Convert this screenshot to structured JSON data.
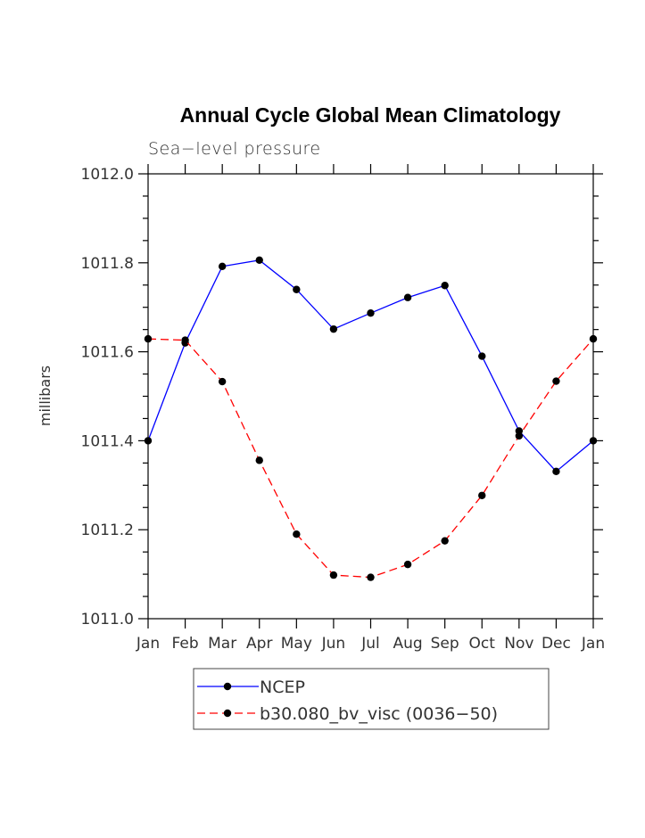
{
  "chart_data": {
    "type": "line",
    "title": "Annual Cycle Global Mean Climatology",
    "subtitle": "Sea−level pressure",
    "xlabel": "",
    "ylabel": "millibars",
    "categories": [
      "Jan",
      "Feb",
      "Mar",
      "Apr",
      "May",
      "Jun",
      "Jul",
      "Aug",
      "Sep",
      "Oct",
      "Nov",
      "Dec",
      "Jan"
    ],
    "ylim": [
      1011.0,
      1012.0
    ],
    "yticks": [
      1011.0,
      1011.2,
      1011.4,
      1011.6,
      1011.8,
      1012.0
    ],
    "ytick_labels": [
      "1011.0",
      "1011.2",
      "1011.4",
      "1011.6",
      "1011.8",
      "1012.0"
    ],
    "legend_position": "bottom",
    "series": [
      {
        "name": "NCEP",
        "color": "#0000ff",
        "dash": "solid",
        "values": [
          1011.4,
          1011.62,
          1011.792,
          1011.806,
          1011.74,
          1011.651,
          1011.687,
          1011.722,
          1011.749,
          1011.59,
          1011.422,
          1011.331,
          1011.4
        ]
      },
      {
        "name": "b30.080_bv_visc (0036−50)",
        "color": "#ff0000",
        "dash": "dashed",
        "values": [
          1011.629,
          1011.626,
          1011.533,
          1011.356,
          1011.19,
          1011.098,
          1011.093,
          1011.122,
          1011.175,
          1011.277,
          1011.411,
          1011.534,
          1011.629
        ]
      }
    ]
  }
}
